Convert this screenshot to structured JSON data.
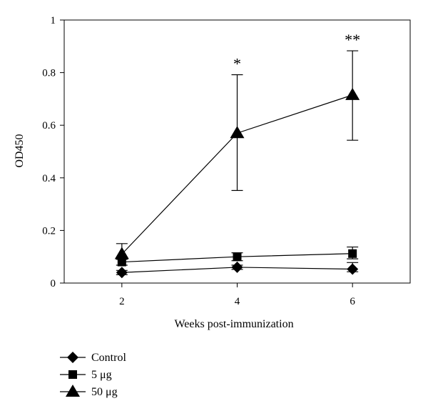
{
  "chart_data": {
    "type": "line",
    "title": "",
    "xlabel": "Weeks post-immunization",
    "ylabel": "OD450",
    "x": [
      2,
      4,
      6
    ],
    "xlim": [
      1,
      7
    ],
    "ylim": [
      0,
      1
    ],
    "xticks": [
      "2",
      "4",
      "6"
    ],
    "yticks": [
      "0",
      "0.2",
      "0.4",
      "0.6",
      "0.8",
      "1"
    ],
    "grid": false,
    "legend_position": "bottom-left",
    "series": [
      {
        "name": "Control",
        "marker": "diamond",
        "values": [
          0.04,
          0.06,
          0.053
        ],
        "error_upper": [
          0.008,
          0.008,
          0.025
        ],
        "error_lower": [
          0.008,
          0.008,
          0.01
        ]
      },
      {
        "name": "5 μg",
        "marker": "square",
        "values": [
          0.08,
          0.1,
          0.112
        ],
        "error_upper": [
          0.012,
          0.015,
          0.025
        ],
        "error_lower": [
          0.012,
          0.015,
          0.02
        ]
      },
      {
        "name": "50 μg",
        "marker": "triangle",
        "values": [
          0.11,
          0.57,
          0.715
        ],
        "error_upper": [
          0.04,
          0.222,
          0.168
        ],
        "error_lower": [
          0.02,
          0.218,
          0.172
        ]
      }
    ],
    "annotations": [
      {
        "x": 4,
        "text": "*"
      },
      {
        "x": 6,
        "text": "**"
      }
    ]
  }
}
